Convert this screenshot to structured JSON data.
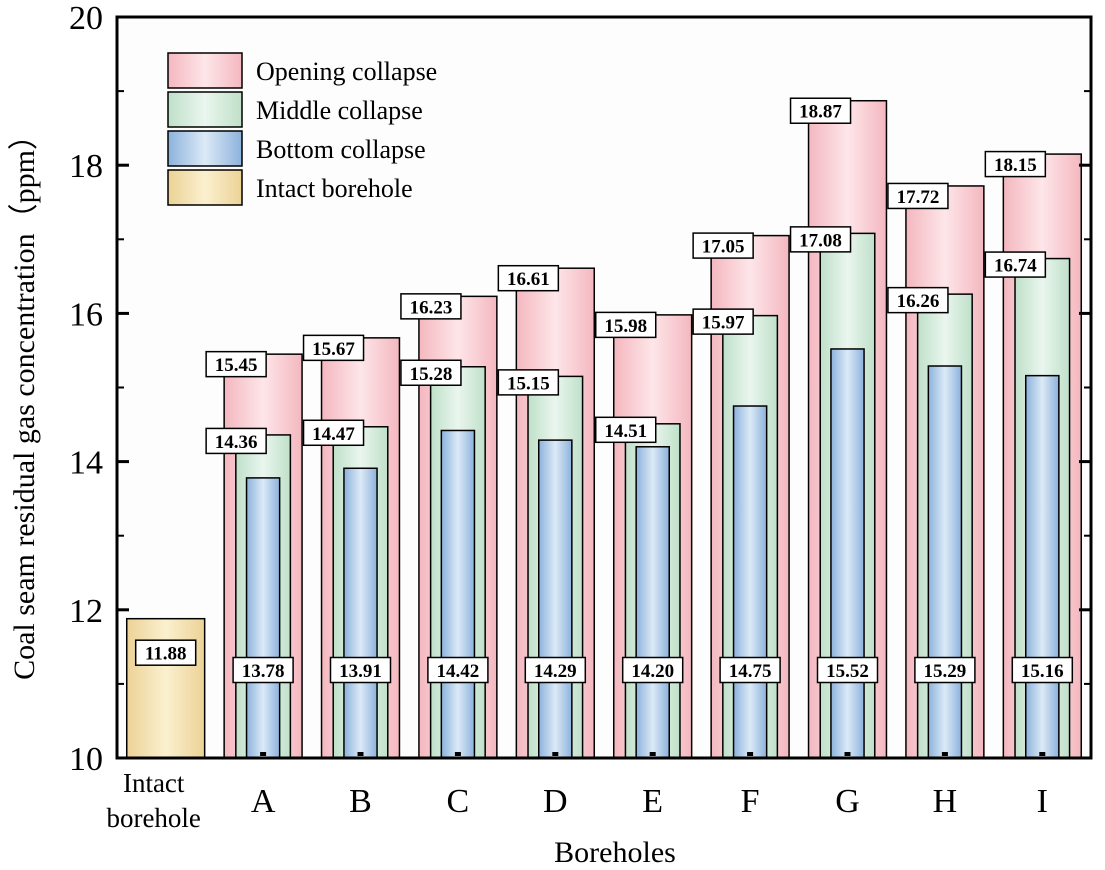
{
  "chart_data": {
    "type": "bar",
    "xlabel": "Boreholes",
    "ylabel": "Coal seam residual gas concentration（ppm）",
    "ylim": [
      10,
      20
    ],
    "yticks": [
      "10",
      "12",
      "14",
      "16",
      "18",
      "20"
    ],
    "grid": false,
    "legend_position": "top-left",
    "categories": [
      "Intact\nborehole",
      "A",
      "B",
      "C",
      "D",
      "E",
      "F",
      "G",
      "H",
      "I"
    ],
    "series": [
      {
        "name": "Opening collapse",
        "color": "#f2c4c9",
        "values": [
          null,
          15.45,
          15.67,
          16.23,
          16.61,
          15.98,
          17.05,
          18.87,
          17.72,
          18.15
        ],
        "labels": [
          "",
          "15.45",
          "15.67",
          "16.23",
          "16.61",
          "15.98",
          "17.05",
          "18.87",
          "17.72",
          "18.15"
        ]
      },
      {
        "name": "Middle collapse",
        "color": "#cfe6d6",
        "values": [
          null,
          14.36,
          14.47,
          15.28,
          15.15,
          14.51,
          15.97,
          17.08,
          16.26,
          16.74
        ],
        "labels": [
          "",
          "14.36",
          "14.47",
          "15.28",
          "15.15",
          "14.51",
          "15.97",
          "17.08",
          "16.26",
          "16.74"
        ]
      },
      {
        "name": "Bottom collapse",
        "color": "#a9c6e4",
        "values": [
          null,
          13.78,
          13.91,
          14.42,
          14.29,
          14.2,
          14.75,
          15.52,
          15.29,
          15.16
        ],
        "labels": [
          "",
          "13.78",
          "13.91",
          "14.42",
          "14.29",
          "14.20",
          "14.75",
          "15.52",
          "15.29",
          "15.16"
        ]
      },
      {
        "name": "Intact borehole",
        "color": "#f2dea6",
        "values": [
          11.88,
          null,
          null,
          null,
          null,
          null,
          null,
          null,
          null,
          null
        ],
        "labels": [
          "11.88",
          "",
          "",
          "",
          "",
          "",
          "",
          "",
          "",
          ""
        ]
      }
    ]
  }
}
